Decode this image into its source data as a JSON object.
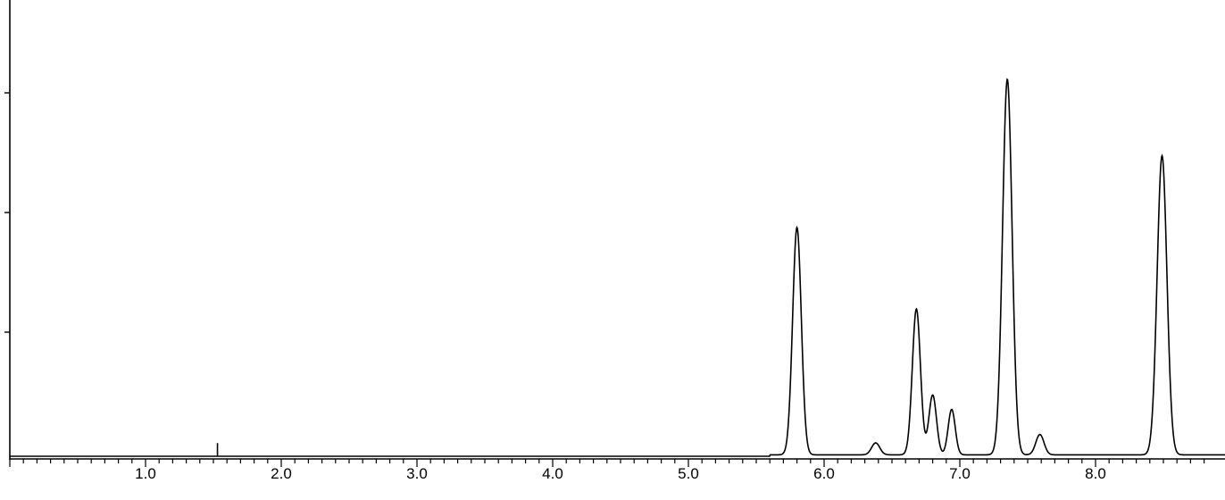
{
  "chart_data": {
    "type": "line",
    "title": "",
    "xlabel": "",
    "ylabel": "",
    "xlim": [
      0,
      8.875
    ],
    "ylim": [
      0,
      3.8
    ],
    "grid": false,
    "x_major_ticks": [
      1.0,
      2.0,
      3.0,
      4.0,
      5.0,
      6.0,
      7.0,
      8.0
    ],
    "x_tick_labels": [
      "1.0",
      "2.0",
      "3.0",
      "4.0",
      "5.0",
      "6.0",
      "7.0",
      "8.0"
    ],
    "x_minor_tick_step": 0.1,
    "y_ticks_unlabeled": [
      1,
      2,
      3
    ],
    "line_color": "#000000",
    "marker": {
      "x": 1.53,
      "height": 0.11
    },
    "peaks": [
      {
        "x": 5.8,
        "height": 1.9,
        "width": 0.032
      },
      {
        "x": 6.38,
        "height": 0.1,
        "width": 0.03
      },
      {
        "x": 6.68,
        "height": 1.22,
        "width": 0.03
      },
      {
        "x": 6.8,
        "height": 0.5,
        "width": 0.028
      },
      {
        "x": 6.94,
        "height": 0.38,
        "width": 0.026
      },
      {
        "x": 7.35,
        "height": 3.14,
        "width": 0.035
      },
      {
        "x": 7.59,
        "height": 0.17,
        "width": 0.03
      },
      {
        "x": 8.49,
        "height": 2.5,
        "width": 0.036
      }
    ]
  }
}
